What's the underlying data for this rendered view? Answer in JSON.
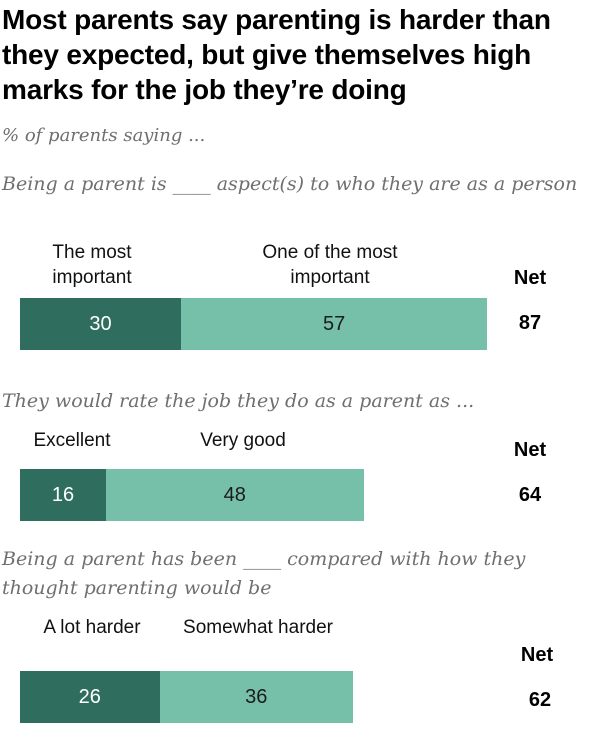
{
  "title": "Most parents say parenting is harder than they expected, but give themselves high marks for the job they’re doing",
  "subtitle": "% of parents saying ...",
  "net_label": "Net",
  "colors": {
    "dark": "#2f6e5e",
    "light": "#76bfa9"
  },
  "chart_data": [
    {
      "type": "bar",
      "question": "Being a parent is ____ aspect(s) to who they are as a person",
      "series": [
        {
          "name": "The most important",
          "value": 30
        },
        {
          "name": "One of the most important",
          "value": 57
        }
      ],
      "net": 87
    },
    {
      "type": "bar",
      "question": "They would rate the job they do as a parent as ...",
      "series": [
        {
          "name": "Excellent",
          "value": 16
        },
        {
          "name": "Very good",
          "value": 48
        }
      ],
      "net": 64
    },
    {
      "type": "bar",
      "question": "Being a parent has been ____ compared with how they thought parenting would be",
      "series": [
        {
          "name": "A lot harder",
          "value": 26
        },
        {
          "name": "Somewhat harder",
          "value": 36
        }
      ],
      "net": 62
    }
  ]
}
